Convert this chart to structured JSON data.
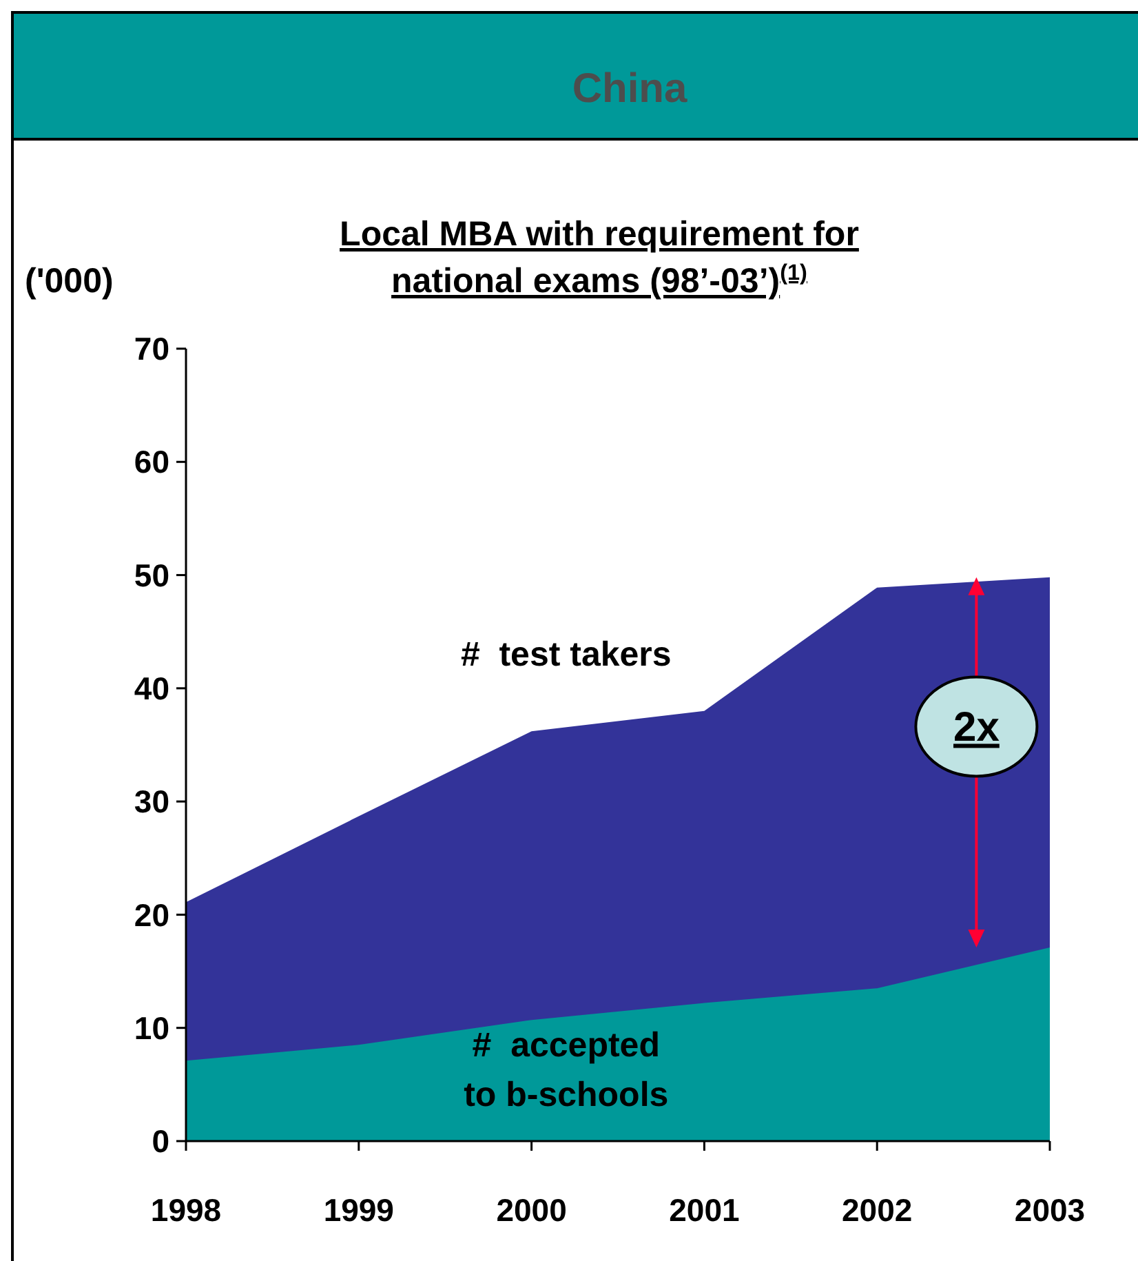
{
  "chart_data": {
    "type": "area",
    "title": "China",
    "subtitle": "Local MBA with requirement for national exams (98’-03’)$^{(1)}$",
    "ylabel": "('000)",
    "x": [
      1998,
      1999,
      2000,
      2001,
      2002,
      2003
    ],
    "series": [
      {
        "name": "#  test takers",
        "color": "#333399",
        "values": [
          21.1,
          28.7,
          36.2,
          38.0,
          48.9,
          49.8
        ]
      },
      {
        "name": "#  accepted to b-schools",
        "color": "#009999",
        "values": [
          7.1,
          8.5,
          10.7,
          12.2,
          13.5,
          17.1
        ]
      }
    ],
    "xlim": [
      1998,
      2003
    ],
    "xticks": [
      1998,
      1999,
      2000,
      2001,
      2002,
      2003
    ],
    "ylim": [
      0,
      70
    ],
    "yticks": [
      0,
      10,
      20,
      30,
      40,
      50,
      60,
      70
    ],
    "annotations": [
      "2x"
    ],
    "grid": false
  }
}
